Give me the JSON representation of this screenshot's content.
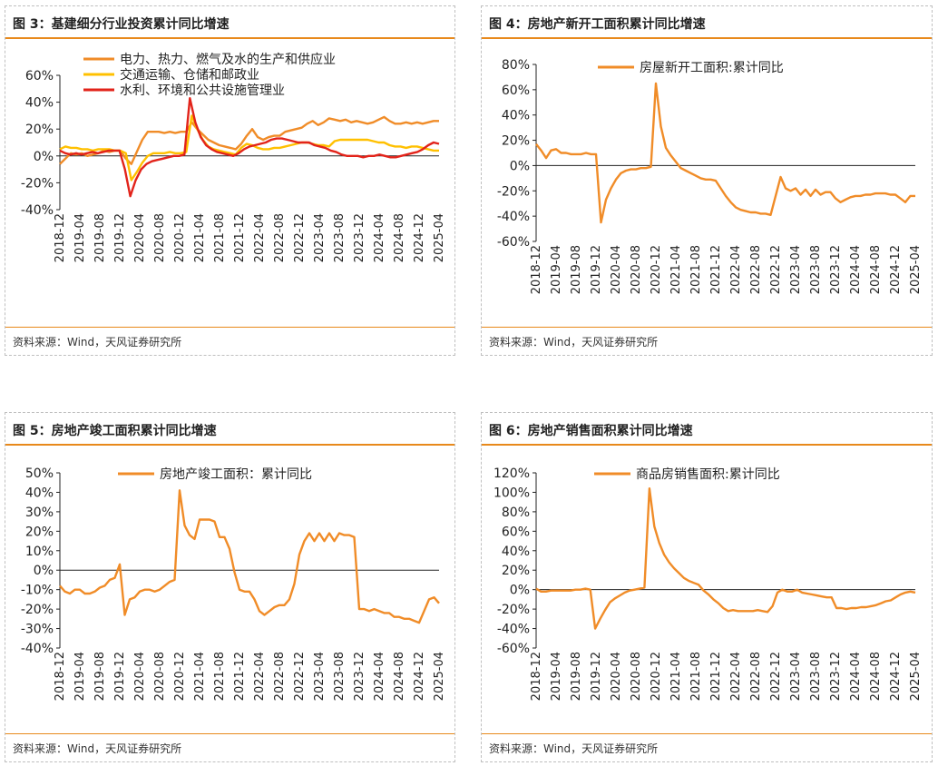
{
  "source_label": "资料来源：Wind，天风证券研究所",
  "x_ticks": [
    "2018-12",
    "2019-04",
    "2019-08",
    "2019-12",
    "2020-04",
    "2020-08",
    "2020-12",
    "2021-04",
    "2021-08",
    "2021-12",
    "2022-04",
    "2022-08",
    "2022-12",
    "2023-04",
    "2023-08",
    "2023-12",
    "2024-04",
    "2024-08",
    "2024-12",
    "2025-04"
  ],
  "colors": {
    "accent": "#e8891b",
    "orange": "#f08c28",
    "yellow": "#ffc000",
    "red": "#e2231a"
  },
  "panels": [
    {
      "id": "fig3",
      "title": "图 3：基建细分行业投资累计同比增速"
    },
    {
      "id": "fig4",
      "title": "图 4：房地产新开工面积累计同比增速"
    },
    {
      "id": "fig5",
      "title": "图 5：房地产竣工面积累计同比增速"
    },
    {
      "id": "fig6",
      "title": "图 6：房地产销售面积累计同比增速"
    }
  ],
  "chart_data": [
    {
      "type": "line",
      "legend_placement": "top",
      "ylim": [
        -40,
        60
      ],
      "yticks": [
        -40,
        -20,
        0,
        20,
        40,
        60
      ],
      "ytick_labels": [
        "-40%",
        "-20%",
        "0%",
        "20%",
        "40%",
        "60%"
      ],
      "series": [
        {
          "name": "电力、热力、燃气及水的生产和供应业",
          "color": "#f08c28",
          "values": [
            -6,
            -2,
            2,
            1,
            2,
            0,
            1,
            2,
            4,
            3,
            4,
            4,
            -2,
            -6,
            3,
            12,
            18,
            18,
            18,
            17,
            18,
            17,
            18,
            18,
            25,
            20,
            16,
            12,
            10,
            8,
            7,
            6,
            5,
            9,
            15,
            20,
            14,
            12,
            14,
            15,
            15,
            18,
            19,
            20,
            21,
            24,
            26,
            23,
            25,
            28,
            27,
            26,
            27,
            25,
            26,
            25,
            24,
            25,
            27,
            29,
            26,
            24,
            24,
            25,
            24,
            25,
            24,
            25,
            26,
            26
          ]
        },
        {
          "name": "交通运输、仓储和邮政业",
          "color": "#ffc000",
          "values": [
            5,
            7,
            6,
            6,
            5,
            5,
            4,
            5,
            5,
            5,
            4,
            4,
            2,
            -18,
            -12,
            -5,
            0,
            2,
            2,
            2,
            3,
            2,
            2,
            3,
            30,
            20,
            12,
            7,
            5,
            4,
            3,
            2,
            1,
            6,
            9,
            8,
            6,
            5,
            5,
            6,
            6,
            7,
            8,
            9,
            10,
            10,
            9,
            8,
            8,
            7,
            11,
            12,
            12,
            12,
            12,
            12,
            12,
            11,
            10,
            10,
            8,
            7,
            7,
            6,
            7,
            7,
            6,
            5,
            4,
            4
          ]
        },
        {
          "name": "水利、环境和公共设施管理业",
          "color": "#e2231a",
          "values": [
            4,
            2,
            1,
            2,
            1,
            2,
            3,
            2,
            3,
            4,
            4,
            4,
            -10,
            -30,
            -18,
            -10,
            -6,
            -4,
            -3,
            -2,
            -1,
            0,
            0,
            1,
            43,
            25,
            14,
            8,
            5,
            3,
            2,
            1,
            0,
            2,
            5,
            7,
            8,
            9,
            10,
            12,
            13,
            13,
            12,
            11,
            10,
            10,
            10,
            8,
            7,
            6,
            4,
            3,
            1,
            0,
            0,
            0,
            -1,
            0,
            0,
            1,
            0,
            -1,
            -1,
            0,
            1,
            2,
            3,
            5,
            8,
            10,
            9
          ]
        }
      ]
    },
    {
      "type": "line",
      "legend_placement": "top",
      "ylim": [
        -60,
        80
      ],
      "yticks": [
        -60,
        -40,
        -20,
        0,
        20,
        40,
        60,
        80
      ],
      "ytick_labels": [
        "-60%",
        "-40%",
        "-20%",
        "0%",
        "20%",
        "40%",
        "60%",
        "80%"
      ],
      "series": [
        {
          "name": "房屋新开工面积:累计同比",
          "color": "#f08c28",
          "values": [
            17,
            12,
            6,
            12,
            13,
            10,
            10,
            9,
            9,
            9,
            10,
            9,
            9,
            -45,
            -27,
            -18,
            -11,
            -6,
            -4,
            -3,
            -3,
            -2,
            -2,
            -1,
            65,
            31,
            14,
            8,
            3,
            -2,
            -4,
            -6,
            -8,
            -10,
            -11,
            -11,
            -12,
            -18,
            -24,
            -29,
            -33,
            -35,
            -36,
            -37,
            -37,
            -38,
            -38,
            -39,
            -24,
            -9,
            -18,
            -20,
            -18,
            -23,
            -19,
            -24,
            -19,
            -23,
            -21,
            -21,
            -26,
            -29,
            -27,
            -25,
            -24,
            -24,
            -23,
            -23,
            -22,
            -22,
            -22,
            -23,
            -23,
            -26,
            -29,
            -24,
            -24
          ]
        }
      ]
    },
    {
      "type": "line",
      "legend_placement": "top",
      "ylim": [
        -40,
        50
      ],
      "yticks": [
        -40,
        -30,
        -20,
        -10,
        0,
        10,
        20,
        30,
        40,
        50
      ],
      "ytick_labels": [
        "-40%",
        "-30%",
        "-20%",
        "-10%",
        "0%",
        "10%",
        "20%",
        "30%",
        "40%",
        "50%"
      ],
      "series": [
        {
          "name": "房地产竣工面积：累计同比",
          "color": "#f08c28",
          "values": [
            -8,
            -11,
            -12,
            -10,
            -10,
            -12,
            -12,
            -11,
            -9,
            -8,
            -5,
            -4,
            3,
            -23,
            -15,
            -14,
            -11,
            -10,
            -10,
            -11,
            -10,
            -8,
            -6,
            -5,
            41,
            23,
            18,
            16,
            26,
            26,
            26,
            25,
            17,
            17,
            11,
            -1,
            -10,
            -11,
            -11,
            -15,
            -21,
            -23,
            -21,
            -19,
            -18,
            -18,
            -15,
            -7,
            8,
            15,
            19,
            15,
            19,
            15,
            19,
            15,
            19,
            18,
            18,
            17,
            -20,
            -20,
            -21,
            -20,
            -21,
            -22,
            -22,
            -24,
            -24,
            -25,
            -25,
            -26,
            -27,
            -21,
            -15,
            -14,
            -17
          ]
        }
      ]
    },
    {
      "type": "line",
      "legend_placement": "top",
      "ylim": [
        -60,
        120
      ],
      "yticks": [
        -60,
        -40,
        -20,
        0,
        20,
        40,
        60,
        80,
        100,
        120
      ],
      "ytick_labels": [
        "-60%",
        "-40%",
        "-20%",
        "0%",
        "20%",
        "40%",
        "60%",
        "80%",
        "100%",
        "120%"
      ],
      "series": [
        {
          "name": "商品房销售面积:累计同比",
          "color": "#f08c28",
          "values": [
            1,
            -2,
            -2,
            -1,
            -1,
            -1,
            -1,
            -1,
            0,
            0,
            1,
            0,
            -40,
            -30,
            -21,
            -13,
            -9,
            -6,
            -3,
            -1,
            0,
            1,
            2,
            104,
            65,
            48,
            36,
            28,
            22,
            17,
            12,
            9,
            7,
            5,
            -1,
            -5,
            -10,
            -14,
            -19,
            -22,
            -21,
            -22,
            -22,
            -22,
            -22,
            -21,
            -22,
            -23,
            -17,
            -3,
            0,
            -2,
            -2,
            0,
            -3,
            -4,
            -5,
            -6,
            -7,
            -8,
            -8,
            -19,
            -19,
            -20,
            -19,
            -19,
            -18,
            -18,
            -17,
            -16,
            -14,
            -12,
            -11,
            -8,
            -5,
            -3,
            -2,
            -3
          ]
        }
      ]
    }
  ]
}
